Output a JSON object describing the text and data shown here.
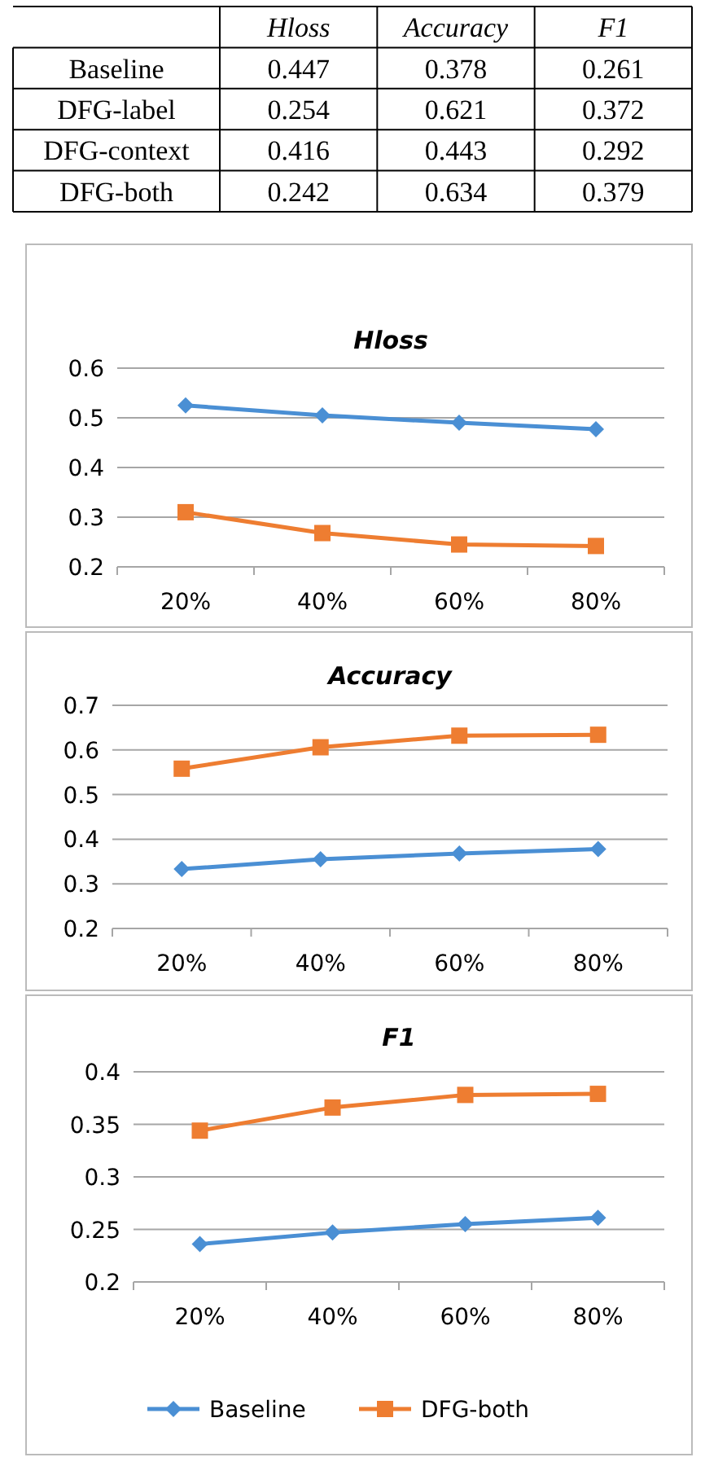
{
  "chart_data": [
    {
      "type": "heatmap",
      "categories": [
        "Hloss",
        "Accuracy",
        "F1"
      ],
      "y_categories": [
        "Baseline",
        "DFG-label",
        "DFG-context",
        "DFG-both"
      ],
      "cells": [
        [
          0.447,
          0.378,
          0.261
        ],
        [
          0.254,
          0.621,
          0.372
        ],
        [
          0.416,
          0.443,
          0.292
        ],
        [
          0.242,
          0.634,
          0.379
        ]
      ],
      "data_labels": true
    },
    {
      "type": "line",
      "title": "Hloss",
      "categories": [
        "20%",
        "40%",
        "60%",
        "80%"
      ],
      "ylim": [
        0.2,
        0.6
      ],
      "yticks": [
        0.2,
        0.3,
        0.4,
        0.5,
        0.6
      ],
      "grid": "y",
      "series": [
        {
          "color": "#4a8fd4",
          "marker": "diamond",
          "values": [
            0.525,
            0.505,
            0.49,
            0.477
          ]
        },
        {
          "color": "#ee7d31",
          "marker": "square",
          "values": [
            0.31,
            0.268,
            0.245,
            0.242
          ]
        }
      ]
    },
    {
      "type": "line",
      "title": "Accuracy",
      "categories": [
        "20%",
        "40%",
        "60%",
        "80%"
      ],
      "ylim": [
        0.2,
        0.7
      ],
      "yticks": [
        0.2,
        0.3,
        0.4,
        0.5,
        0.6,
        0.7
      ],
      "grid": "y",
      "series": [
        {
          "color": "#ee7d31",
          "marker": "square",
          "values": [
            0.558,
            0.606,
            0.632,
            0.634
          ]
        },
        {
          "color": "#4a8fd4",
          "marker": "diamond",
          "values": [
            0.333,
            0.355,
            0.368,
            0.378
          ]
        }
      ]
    },
    {
      "type": "line",
      "title": "F1",
      "categories": [
        "20%",
        "40%",
        "60%",
        "80%"
      ],
      "ylim": [
        0.2,
        0.4
      ],
      "yticks": [
        0.2,
        0.25,
        0.3,
        0.35,
        0.4
      ],
      "grid": "y",
      "legend": "bottom",
      "series": [
        {
          "name": "Baseline",
          "color": "#4a8fd4",
          "marker": "diamond",
          "values": [
            0.236,
            0.247,
            0.255,
            0.261
          ]
        },
        {
          "name": "DFG-both",
          "color": "#ee7d31",
          "marker": "square",
          "values": [
            0.344,
            0.366,
            0.378,
            0.379
          ]
        }
      ]
    }
  ]
}
